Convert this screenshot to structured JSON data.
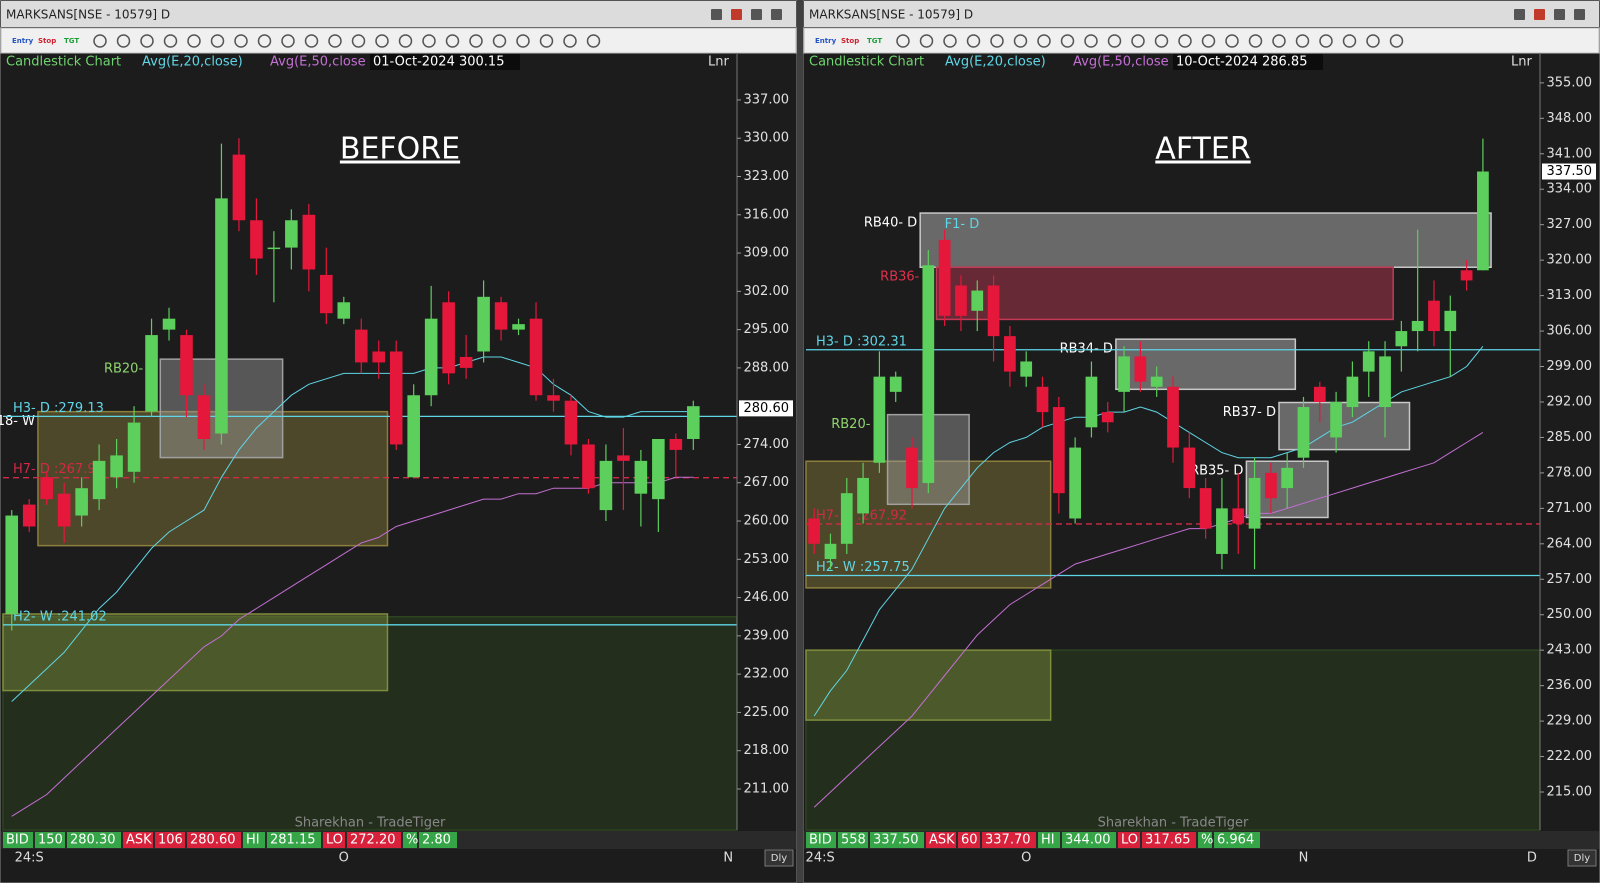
{
  "chart_data": [
    {
      "type": "candlestick",
      "window_title": "MARKSANS[NSE - 10579] D",
      "toolbar": [
        "Entry",
        "Stop",
        "TGT"
      ],
      "legend_label": "Candlestick Chart",
      "info": "01-Oct-2024 300.15",
      "axis_mode": "Lnr",
      "big_label": "BEFORE",
      "watermark": "Sharekhan - TradeTiger",
      "corner_label": "Dly",
      "up_color": "#5ccf5c",
      "down_color": "#e5173b",
      "categories": [
        null,
        "24:S",
        null,
        null,
        null,
        null,
        null,
        null,
        null,
        null,
        null,
        null,
        null,
        null,
        null,
        null,
        null,
        null,
        null,
        "O",
        null,
        null,
        null,
        null,
        null,
        null,
        null,
        null,
        null,
        null,
        null,
        null,
        null,
        null,
        null,
        null,
        null,
        null,
        null,
        null,
        null,
        "N"
      ],
      "open": [
        243,
        263,
        268,
        265,
        261,
        264,
        268,
        269,
        280,
        295,
        294,
        283,
        276,
        327,
        315,
        310,
        310,
        316,
        305,
        297,
        295,
        291,
        291,
        268,
        283,
        300,
        290,
        291,
        300,
        295,
        297,
        283,
        282,
        274,
        262,
        272,
        265,
        264,
        275,
        275,
        null,
        null
      ],
      "high": [
        262,
        264,
        269,
        267,
        268,
        274,
        275,
        281,
        297,
        299,
        295,
        285,
        329,
        330,
        319,
        313,
        317,
        318,
        310,
        301,
        297,
        293,
        293,
        285,
        303,
        302,
        294,
        304,
        301,
        297,
        300,
        286,
        283,
        275,
        274,
        277,
        273,
        275,
        276,
        282,
        null,
        null
      ],
      "low": [
        240,
        258,
        263,
        256,
        259,
        262,
        266,
        267,
        279,
        293,
        279,
        273,
        274,
        313,
        305,
        300,
        306,
        302,
        296,
        296,
        287,
        286,
        273,
        268,
        281,
        285,
        286,
        289,
        293,
        294,
        282,
        280,
        272,
        265,
        260,
        262,
        259,
        258,
        268,
        273,
        null,
        null
      ],
      "close": [
        261,
        259,
        264,
        259,
        266,
        271,
        272,
        278,
        294,
        297,
        283,
        275,
        319,
        315,
        308,
        310,
        315,
        306,
        298,
        300,
        289,
        289,
        274,
        283,
        297,
        287,
        288,
        301,
        295,
        296,
        283,
        282,
        274,
        266,
        271,
        271,
        271,
        275,
        273,
        281,
        null,
        null
      ],
      "series": [
        {
          "name": "Avg(E,20,close)",
          "color": "#5fd6e6",
          "values": [
            227,
            230,
            233,
            236,
            240,
            244,
            247,
            251,
            255,
            258,
            260,
            262,
            268,
            273,
            277,
            280,
            283,
            285,
            286,
            287,
            287,
            287,
            287,
            287,
            288,
            288,
            289,
            290,
            290,
            289,
            288,
            285,
            283,
            280,
            279,
            279,
            280,
            280,
            280,
            280,
            null,
            null
          ]
        },
        {
          "name": "Avg(E,50,close",
          "color": "#c46fd4",
          "values": [
            206,
            208,
            210,
            213,
            216,
            219,
            222,
            225,
            228,
            231,
            234,
            237,
            239,
            242,
            244,
            246,
            248,
            250,
            252,
            254,
            256,
            257,
            259,
            260,
            261,
            262,
            263,
            264,
            264,
            265,
            265,
            266,
            266,
            266,
            267,
            267,
            267,
            267,
            268,
            268,
            null,
            null
          ]
        }
      ],
      "ylim": [
        203.5,
        345.4
      ],
      "yticks": [
        {
          "value": 337,
          "label": "337.00"
        },
        {
          "value": 330,
          "label": "330.00"
        },
        {
          "value": 323,
          "label": "323.00"
        },
        {
          "value": 316,
          "label": "316.00"
        },
        {
          "value": 309,
          "label": "309.00"
        },
        {
          "value": 302,
          "label": "302.00"
        },
        {
          "value": 295,
          "label": "295.00"
        },
        {
          "value": 288,
          "label": "288.00"
        },
        {
          "value": 274,
          "label": "274.00"
        },
        {
          "value": 267,
          "label": "267.00"
        },
        {
          "value": 260,
          "label": "260.00"
        },
        {
          "value": 253,
          "label": "253.00"
        },
        {
          "value": 246,
          "label": "246.00"
        },
        {
          "value": 239,
          "label": "239.00"
        },
        {
          "value": 232,
          "label": "232.00"
        },
        {
          "value": 225,
          "label": "225.00"
        },
        {
          "value": 218,
          "label": "218.00"
        },
        {
          "value": 211,
          "label": "211.00"
        }
      ],
      "last_price": {
        "value": 280.6,
        "label": "280.60"
      },
      "zones": [
        {
          "top": 242.5,
          "bottom": 203.5,
          "start": 0,
          "end": 41,
          "color": "#2c4420"
        },
        {
          "top": 243,
          "bottom": 229,
          "start": 0,
          "end": 21,
          "color": "#7e8d3c"
        },
        {
          "label": "18- W",
          "top": 280,
          "bottom": 255.5,
          "start": 2,
          "end": 21,
          "color": "#8c7f3c",
          "label_color": "#ffffff"
        },
        {
          "label": "RB20- D",
          "top": 289.6,
          "bottom": 271.6,
          "start": 9,
          "end": 15,
          "color": "#a0a0a0",
          "label_color": "#8fd46f"
        }
      ],
      "lines": [
        {
          "label": "H3- D :279.13",
          "value": 279.13,
          "color": "#5fd6e6",
          "style": "solid"
        },
        {
          "label": "H7- D :267.92",
          "value": 267.92,
          "color": "#d02a45",
          "style": "dashed"
        },
        {
          "label": "H2- W :241.02",
          "value": 241.02,
          "color": "#5fd6e6",
          "style": "solid"
        }
      ],
      "annotations": [],
      "status": [
        {
          "label": "BID",
          "values": [
            "150",
            "280.30"
          ],
          "color": "#35a548"
        },
        {
          "label": "ASK",
          "values": [
            "106",
            "280.60"
          ],
          "color": "#d8213b"
        },
        {
          "label": "HI",
          "values": [
            "281.15"
          ],
          "color": "#35a548"
        },
        {
          "label": "LO",
          "values": [
            "272.20"
          ],
          "color": "#d8213b"
        },
        {
          "label": "%",
          "values": [
            "2.80"
          ],
          "color": "#35a548"
        }
      ]
    },
    {
      "type": "candlestick",
      "window_title": "MARKSANS[NSE - 10579] D",
      "toolbar": [
        "Entry",
        "Stop",
        "TGT"
      ],
      "legend_label": "Candlestick Chart",
      "info": "10-Oct-2024 286.85",
      "axis_mode": "Lnr",
      "big_label": "AFTER",
      "watermark": "Sharekhan - TradeTiger",
      "corner_label": "Dly",
      "up_color": "#5ccf5c",
      "down_color": "#e5173b",
      "categories": [
        "24:S",
        null,
        null,
        null,
        null,
        null,
        null,
        null,
        null,
        null,
        null,
        null,
        null,
        "O",
        null,
        null,
        null,
        null,
        null,
        null,
        null,
        null,
        null,
        null,
        null,
        null,
        null,
        null,
        null,
        null,
        "N",
        null,
        null,
        null,
        null,
        null,
        null,
        null,
        null,
        null,
        null,
        null,
        null,
        null,
        "D"
      ],
      "open": [
        269,
        261,
        264,
        270,
        280,
        294,
        283,
        276,
        324,
        315,
        310,
        315,
        305,
        297,
        295,
        291,
        269,
        287,
        290,
        294,
        301,
        295,
        295,
        283,
        275,
        262,
        271,
        267,
        278,
        275,
        281,
        295,
        285,
        291,
        298,
        291,
        303,
        306,
        312,
        306,
        318,
        318,
        null,
        null,
        null
      ],
      "high": [
        271,
        266,
        277,
        280,
        302,
        298,
        285,
        322,
        326,
        317,
        316,
        317,
        307,
        302,
        297,
        293,
        285,
        300,
        292,
        303,
        304,
        299,
        297,
        286,
        277,
        277,
        278,
        281,
        280,
        282,
        293,
        296,
        294,
        300,
        304,
        304,
        308,
        326,
        316,
        313,
        320,
        344,
        null,
        null,
        null
      ],
      "low": [
        262,
        259,
        262,
        268,
        278,
        292,
        271,
        274,
        307,
        306,
        306,
        300,
        295,
        295,
        287,
        270,
        268,
        285,
        286,
        290,
        294,
        293,
        280,
        273,
        265,
        259,
        262,
        259,
        270,
        271,
        279,
        288,
        282,
        289,
        293,
        285,
        298,
        302,
        303,
        297,
        314,
        318,
        null,
        null,
        null
      ],
      "close": [
        264,
        264,
        274,
        277,
        297,
        297,
        275,
        319,
        309,
        309,
        314,
        305,
        298,
        300,
        290,
        274,
        283,
        297,
        288,
        301,
        296,
        297,
        283,
        275,
        267,
        271,
        268,
        277,
        273,
        279,
        291,
        292,
        292,
        297,
        302,
        301,
        306,
        308,
        306,
        310,
        316,
        337.5,
        null,
        null,
        null
      ],
      "series": [
        {
          "name": "Avg(E,20,close)",
          "color": "#5fd6e6",
          "values": [
            230,
            235,
            239,
            245,
            251,
            255,
            259,
            265,
            271,
            275,
            279,
            282,
            284,
            285,
            287,
            288,
            289,
            289,
            290,
            290,
            291,
            290,
            288,
            286,
            284,
            282,
            281,
            281,
            281,
            282,
            283,
            285,
            287,
            288,
            290,
            292,
            294,
            295,
            296,
            297,
            299,
            303,
            null,
            null,
            null
          ]
        },
        {
          "name": "Avg(E,50,close",
          "color": "#c46fd4",
          "values": [
            212,
            215,
            218,
            221,
            224,
            227,
            230,
            234,
            238,
            242,
            246,
            249,
            252,
            254,
            256,
            258,
            260,
            261,
            262,
            263,
            264,
            265,
            266,
            267,
            267,
            268,
            269,
            270,
            270,
            271,
            272,
            273,
            274,
            275,
            276,
            277,
            278,
            279,
            280,
            282,
            284,
            286,
            null,
            null,
            null
          ]
        }
      ],
      "ylim": [
        207.5,
        360.7
      ],
      "yticks": [
        {
          "value": 355,
          "label": "355.00"
        },
        {
          "value": 348,
          "label": "348.00"
        },
        {
          "value": 341,
          "label": "341.00"
        },
        {
          "value": 334,
          "label": "334.00"
        },
        {
          "value": 327,
          "label": "327.00"
        },
        {
          "value": 320,
          "label": "320.00"
        },
        {
          "value": 313,
          "label": "313.00"
        },
        {
          "value": 306,
          "label": "306.00"
        },
        {
          "value": 299,
          "label": "299.00"
        },
        {
          "value": 292,
          "label": "292.00"
        },
        {
          "value": 285,
          "label": "285.00"
        },
        {
          "value": 278,
          "label": "278.00"
        },
        {
          "value": 271,
          "label": "271.00"
        },
        {
          "value": 264,
          "label": "264.00"
        },
        {
          "value": 257,
          "label": "257.00"
        },
        {
          "value": 250,
          "label": "250.00"
        },
        {
          "value": 243,
          "label": "243.00"
        },
        {
          "value": 236,
          "label": "236.00"
        },
        {
          "value": 229,
          "label": "229.00"
        },
        {
          "value": 222,
          "label": "222.00"
        },
        {
          "value": 215,
          "label": "215.00"
        }
      ],
      "last_price": {
        "value": 337.5,
        "label": "337.50"
      },
      "zones": [
        {
          "top": 243,
          "bottom": 207.5,
          "start": 0,
          "end": 44,
          "color": "#2c4420"
        },
        {
          "top": 243,
          "bottom": 229.2,
          "start": 0,
          "end": 14,
          "color": "#7e8d3c"
        },
        {
          "top": 280.3,
          "bottom": 255.3,
          "start": 0,
          "end": 14,
          "color": "#8c7f3c"
        },
        {
          "label": "RB20- D",
          "top": 289.5,
          "bottom": 271.8,
          "start": 5,
          "end": 9,
          "color": "#a0a0a0",
          "label_color": "#8fd46f"
        },
        {
          "label": "RB40- D",
          "top": 329.3,
          "bottom": 318.6,
          "start": 7,
          "end": 41,
          "color": "#c8c8c8",
          "label_color": "#ffffff"
        },
        {
          "label": "RB36- D",
          "top": 318.6,
          "bottom": 308.3,
          "start": 8,
          "end": 35,
          "color": "#c23a55",
          "label_color": "#e0304c"
        },
        {
          "label": "RB34- D",
          "top": 304.4,
          "bottom": 294.5,
          "start": 19,
          "end": 29,
          "color": "#c8c8c8",
          "label_color": "#ffffff"
        },
        {
          "label": "RB37- D",
          "top": 291.9,
          "bottom": 282.6,
          "start": 29,
          "end": 36,
          "color": "#c8c8c8",
          "label_color": "#ffffff"
        },
        {
          "label": "RB35- D",
          "top": 280.3,
          "bottom": 269.2,
          "start": 27,
          "end": 31,
          "color": "#c8c8c8",
          "label_color": "#ffffff"
        }
      ],
      "lines": [
        {
          "label": "H3- D :302.31",
          "value": 302.31,
          "color": "#5fd6e6",
          "style": "solid"
        },
        {
          "label": "H7- D :267.92",
          "value": 267.92,
          "color": "#d02a45",
          "style": "dashed"
        },
        {
          "label": "H2- W :257.75",
          "value": 257.75,
          "color": "#5fd6e6",
          "style": "solid"
        }
      ],
      "annotations": [
        {
          "text": "F1- D",
          "x": 8,
          "y": 327,
          "color": "#5fd6e6"
        }
      ],
      "status": [
        {
          "label": "BID",
          "values": [
            "558",
            "337.50"
          ],
          "color": "#35a548"
        },
        {
          "label": "ASK",
          "values": [
            "60",
            "337.70"
          ],
          "color": "#d8213b"
        },
        {
          "label": "HI",
          "values": [
            "344.00"
          ],
          "color": "#35a548"
        },
        {
          "label": "LO",
          "values": [
            "317.65"
          ],
          "color": "#d8213b"
        },
        {
          "label": "%",
          "values": [
            "6.964"
          ],
          "color": "#35a548"
        }
      ]
    }
  ]
}
